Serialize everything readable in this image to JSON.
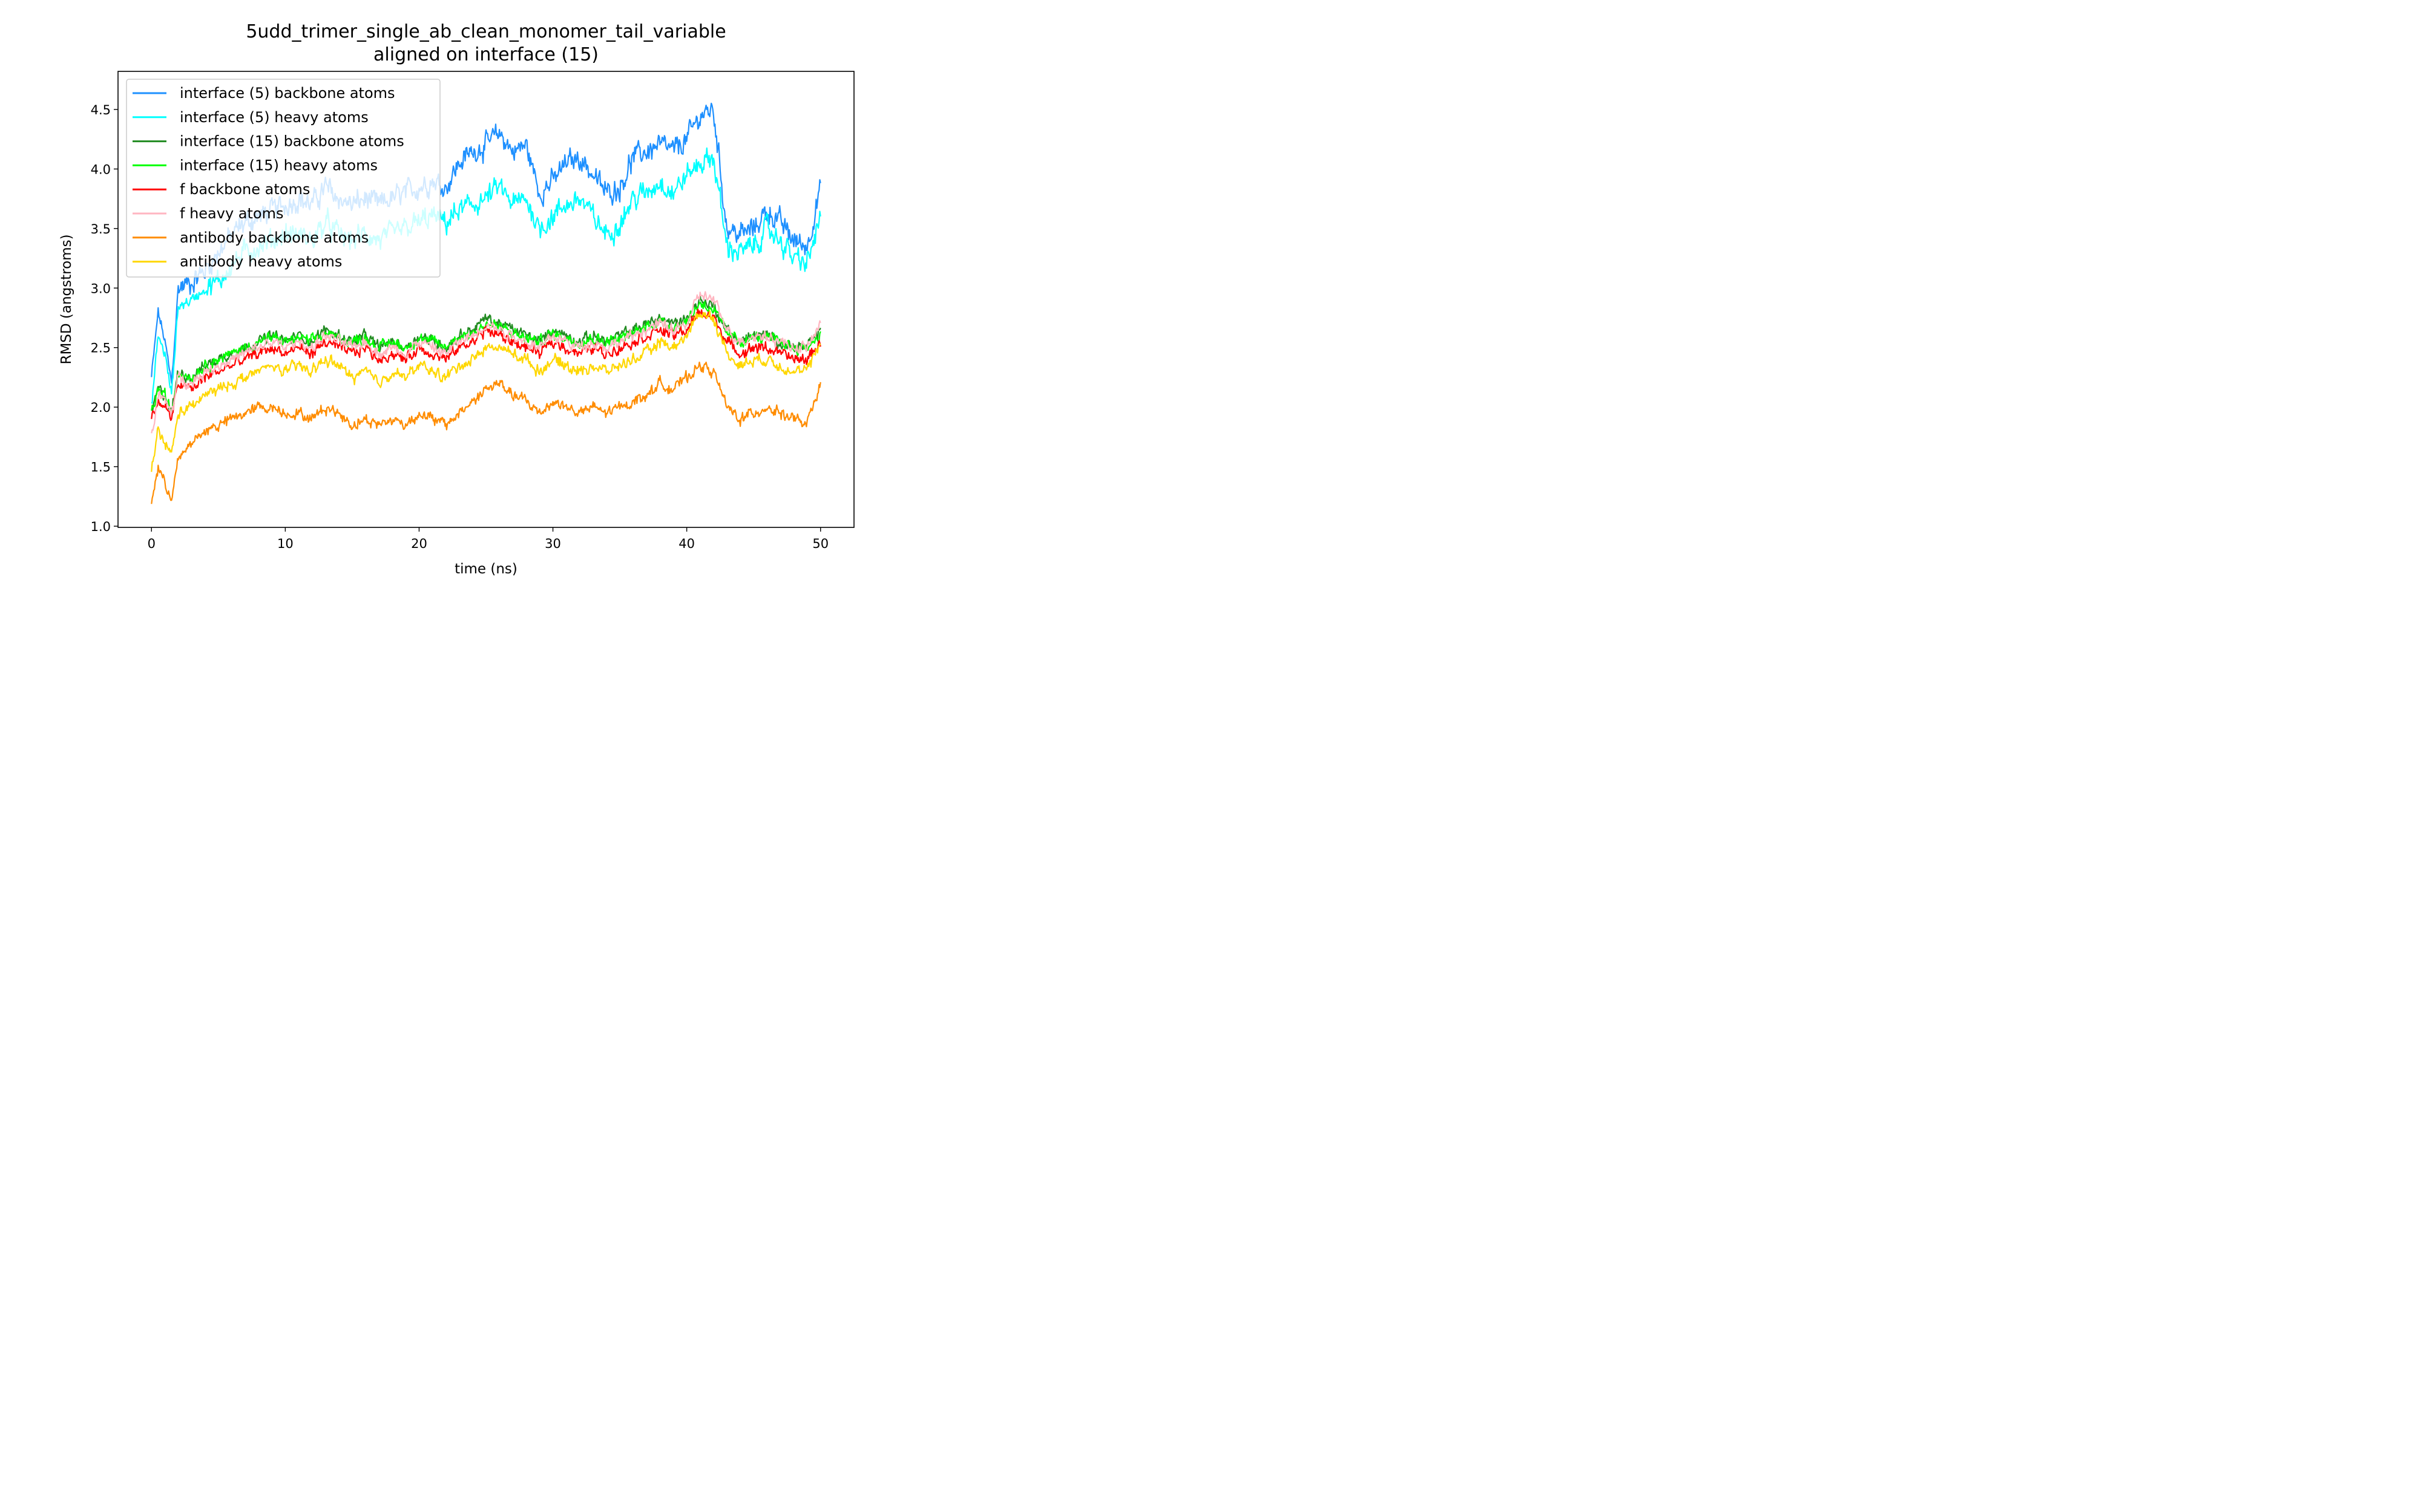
{
  "chart_data": {
    "type": "line",
    "title": "5udd_trimer_single_ab_clean_monomer_tail_variable",
    "subtitle": "aligned on interface (15)",
    "xlabel": "time (ns)",
    "ylabel": "RMSD (angstroms)",
    "xlim": [
      -2.5,
      52.5
    ],
    "ylim": [
      0.99,
      4.82
    ],
    "xticks": [
      0,
      10,
      20,
      30,
      40,
      50
    ],
    "yticks": [
      1.0,
      1.5,
      2.0,
      2.5,
      3.0,
      3.5,
      4.0,
      4.5
    ],
    "xtick_labels": [
      "0",
      "10",
      "20",
      "30",
      "40",
      "50"
    ],
    "ytick_labels": [
      "1.0",
      "1.5",
      "2.0",
      "2.5",
      "3.0",
      "3.5",
      "4.0",
      "4.5"
    ],
    "grid": false,
    "legend_position": "top-left",
    "x": [
      0,
      0.5,
      1,
      1.5,
      2,
      3,
      4,
      5,
      6,
      7,
      8,
      9,
      10,
      11,
      12,
      13,
      14,
      15,
      16,
      17,
      18,
      19,
      20,
      21,
      22,
      23,
      24,
      25,
      26,
      27,
      28,
      29,
      30,
      31,
      32,
      33,
      34,
      35,
      36,
      37,
      38,
      39,
      40,
      41,
      42,
      43,
      44,
      45,
      46,
      47,
      48,
      49,
      50
    ],
    "series": [
      {
        "name": "interface (5) backbone atoms",
        "color": "#1e90ff",
        "values": [
          2.25,
          2.8,
          2.55,
          2.2,
          3.0,
          3.05,
          3.15,
          3.3,
          3.45,
          3.55,
          3.6,
          3.65,
          3.7,
          3.75,
          3.7,
          3.85,
          3.75,
          3.7,
          3.75,
          3.7,
          3.75,
          3.8,
          3.85,
          3.9,
          3.85,
          4.05,
          4.15,
          4.2,
          4.3,
          4.15,
          4.2,
          3.8,
          3.9,
          4.05,
          4.1,
          3.95,
          3.8,
          3.85,
          4.1,
          4.15,
          4.2,
          4.15,
          4.25,
          4.45,
          4.5,
          3.5,
          3.45,
          3.5,
          3.65,
          3.55,
          3.4,
          3.35,
          3.85
        ]
      },
      {
        "name": "interface (5) heavy atoms",
        "color": "#00ffff",
        "values": [
          2.0,
          2.6,
          2.45,
          2.1,
          2.85,
          2.9,
          3.0,
          3.05,
          3.2,
          3.3,
          3.35,
          3.4,
          3.45,
          3.45,
          3.4,
          3.55,
          3.45,
          3.4,
          3.45,
          3.4,
          3.45,
          3.5,
          3.55,
          3.6,
          3.55,
          3.65,
          3.7,
          3.75,
          3.85,
          3.7,
          3.75,
          3.5,
          3.6,
          3.7,
          3.75,
          3.6,
          3.45,
          3.55,
          3.75,
          3.8,
          3.9,
          3.8,
          3.95,
          4.05,
          4.1,
          3.35,
          3.3,
          3.35,
          3.5,
          3.4,
          3.25,
          3.2,
          3.6
        ]
      },
      {
        "name": "interface (15) backbone atoms",
        "color": "#228b22",
        "values": [
          1.95,
          2.15,
          2.1,
          1.95,
          2.3,
          2.25,
          2.35,
          2.4,
          2.45,
          2.5,
          2.55,
          2.6,
          2.55,
          2.6,
          2.55,
          2.65,
          2.6,
          2.55,
          2.6,
          2.5,
          2.55,
          2.5,
          2.6,
          2.55,
          2.5,
          2.6,
          2.65,
          2.75,
          2.7,
          2.65,
          2.6,
          2.55,
          2.65,
          2.6,
          2.55,
          2.6,
          2.55,
          2.6,
          2.65,
          2.7,
          2.75,
          2.7,
          2.75,
          2.9,
          2.85,
          2.65,
          2.55,
          2.6,
          2.6,
          2.55,
          2.5,
          2.5,
          2.65
        ]
      },
      {
        "name": "interface (15) heavy atoms",
        "color": "#00ff00",
        "values": [
          1.95,
          2.15,
          2.1,
          1.95,
          2.3,
          2.25,
          2.35,
          2.4,
          2.45,
          2.5,
          2.55,
          2.58,
          2.55,
          2.58,
          2.55,
          2.62,
          2.58,
          2.55,
          2.58,
          2.5,
          2.55,
          2.5,
          2.58,
          2.55,
          2.5,
          2.6,
          2.62,
          2.7,
          2.68,
          2.62,
          2.58,
          2.55,
          2.62,
          2.58,
          2.55,
          2.58,
          2.55,
          2.58,
          2.62,
          2.68,
          2.72,
          2.68,
          2.72,
          2.88,
          2.82,
          2.62,
          2.55,
          2.58,
          2.58,
          2.55,
          2.5,
          2.5,
          2.62
        ]
      },
      {
        "name": "f backbone atoms",
        "color": "#ff0000",
        "values": [
          1.9,
          2.05,
          2.0,
          1.9,
          2.2,
          2.15,
          2.25,
          2.3,
          2.35,
          2.4,
          2.45,
          2.5,
          2.45,
          2.5,
          2.45,
          2.55,
          2.5,
          2.45,
          2.5,
          2.4,
          2.45,
          2.4,
          2.5,
          2.45,
          2.4,
          2.5,
          2.55,
          2.65,
          2.6,
          2.55,
          2.5,
          2.45,
          2.55,
          2.5,
          2.45,
          2.5,
          2.45,
          2.5,
          2.55,
          2.6,
          2.65,
          2.6,
          2.65,
          2.8,
          2.75,
          2.55,
          2.45,
          2.5,
          2.5,
          2.45,
          2.4,
          2.4,
          2.55
        ]
      },
      {
        "name": "f heavy atoms",
        "color": "#ffb6c1",
        "values": [
          1.75,
          2.1,
          2.05,
          1.95,
          2.25,
          2.2,
          2.3,
          2.35,
          2.4,
          2.45,
          2.5,
          2.55,
          2.5,
          2.55,
          2.5,
          2.6,
          2.55,
          2.5,
          2.55,
          2.45,
          2.5,
          2.45,
          2.55,
          2.5,
          2.45,
          2.55,
          2.6,
          2.7,
          2.65,
          2.6,
          2.55,
          2.5,
          2.6,
          2.55,
          2.5,
          2.55,
          2.5,
          2.55,
          2.6,
          2.65,
          2.7,
          2.65,
          2.7,
          2.95,
          2.9,
          2.65,
          2.55,
          2.6,
          2.6,
          2.55,
          2.5,
          2.5,
          2.7
        ]
      },
      {
        "name": "antibody backbone atoms",
        "color": "#ff8c00",
        "values": [
          1.2,
          1.5,
          1.35,
          1.25,
          1.55,
          1.7,
          1.8,
          1.85,
          1.9,
          1.95,
          2.0,
          2.0,
          1.95,
          1.95,
          1.9,
          2.0,
          1.95,
          1.85,
          1.9,
          1.85,
          1.9,
          1.85,
          1.95,
          1.9,
          1.85,
          1.95,
          2.05,
          2.15,
          2.2,
          2.1,
          2.05,
          1.95,
          2.05,
          2.0,
          1.95,
          2.0,
          1.95,
          2.0,
          2.05,
          2.1,
          2.2,
          2.15,
          2.25,
          2.35,
          2.3,
          2.0,
          1.9,
          1.95,
          2.0,
          1.95,
          1.9,
          1.85,
          2.2
        ]
      },
      {
        "name": "antibody heavy atoms",
        "color": "#ffd700",
        "values": [
          1.45,
          1.8,
          1.7,
          1.6,
          1.95,
          2.0,
          2.1,
          2.15,
          2.2,
          2.25,
          2.3,
          2.35,
          2.3,
          2.35,
          2.3,
          2.4,
          2.35,
          2.25,
          2.3,
          2.2,
          2.3,
          2.25,
          2.35,
          2.3,
          2.25,
          2.35,
          2.4,
          2.5,
          2.5,
          2.45,
          2.4,
          2.3,
          2.4,
          2.35,
          2.3,
          2.35,
          2.3,
          2.35,
          2.4,
          2.45,
          2.55,
          2.5,
          2.6,
          2.8,
          2.75,
          2.45,
          2.35,
          2.4,
          2.4,
          2.35,
          2.3,
          2.3,
          2.55
        ]
      }
    ]
  }
}
